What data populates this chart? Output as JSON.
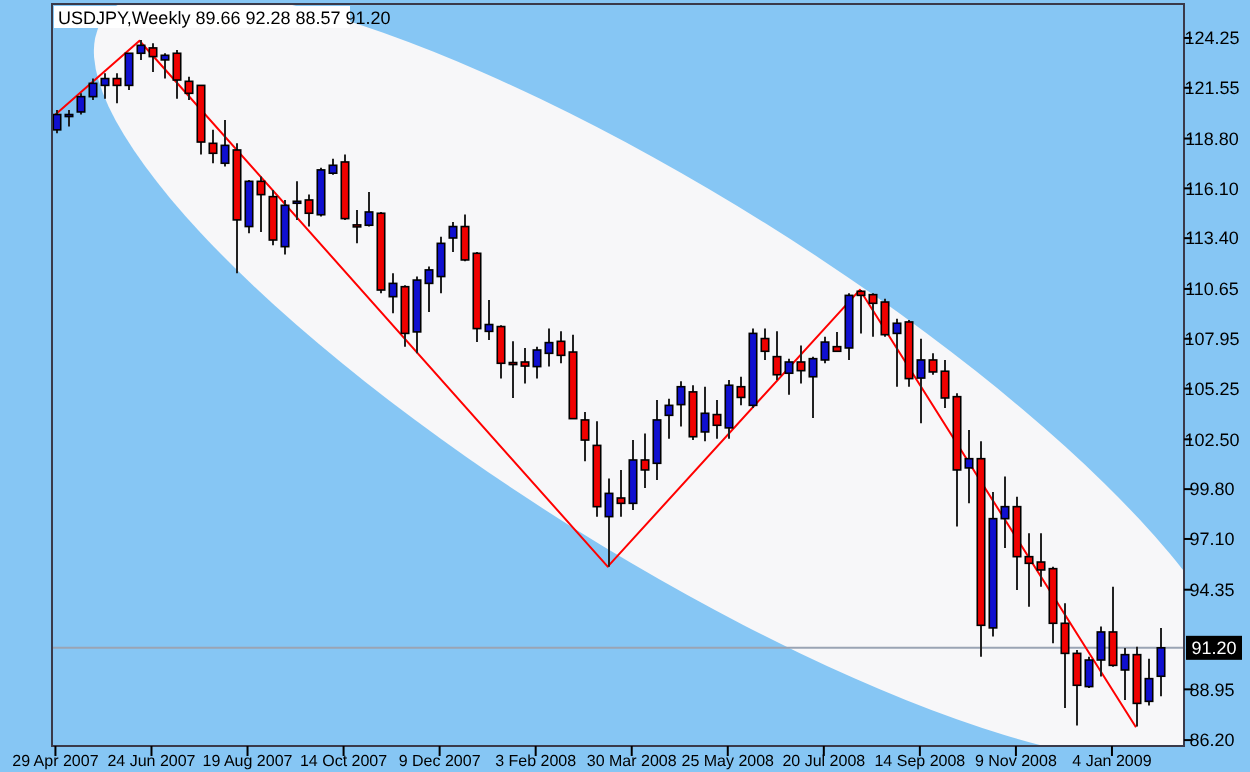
{
  "chart_data": {
    "type": "candlestick",
    "title": "USDJPY,Weekly 89.66 92.28 88.57 91.20",
    "x": [
      "2007-04-29",
      "2007-05-06",
      "2007-05-13",
      "2007-05-20",
      "2007-05-27",
      "2007-06-03",
      "2007-06-10",
      "2007-06-17",
      "2007-06-24",
      "2007-07-01",
      "2007-07-08",
      "2007-07-15",
      "2007-07-22",
      "2007-07-29",
      "2007-08-05",
      "2007-08-12",
      "2007-08-19",
      "2007-08-26",
      "2007-09-02",
      "2007-09-09",
      "2007-09-16",
      "2007-09-23",
      "2007-09-30",
      "2007-10-07",
      "2007-10-14",
      "2007-10-21",
      "2007-10-28",
      "2007-11-04",
      "2007-11-11",
      "2007-11-18",
      "2007-11-25",
      "2007-12-02",
      "2007-12-09",
      "2007-12-16",
      "2007-12-23",
      "2007-12-30",
      "2008-01-06",
      "2008-01-13",
      "2008-01-20",
      "2008-01-27",
      "2008-02-03",
      "2008-02-10",
      "2008-02-17",
      "2008-02-24",
      "2008-03-02",
      "2008-03-09",
      "2008-03-16",
      "2008-03-23",
      "2008-03-30",
      "2008-04-06",
      "2008-04-13",
      "2008-04-20",
      "2008-04-27",
      "2008-05-04",
      "2008-05-11",
      "2008-05-18",
      "2008-05-25",
      "2008-06-01",
      "2008-06-08",
      "2008-06-15",
      "2008-06-22",
      "2008-06-29",
      "2008-07-06",
      "2008-07-13",
      "2008-07-20",
      "2008-07-27",
      "2008-08-03",
      "2008-08-10",
      "2008-08-17",
      "2008-08-24",
      "2008-08-31",
      "2008-09-07",
      "2008-09-14",
      "2008-09-21",
      "2008-09-28",
      "2008-10-05",
      "2008-10-12",
      "2008-10-19",
      "2008-10-26",
      "2008-11-02",
      "2008-11-09",
      "2008-11-16",
      "2008-11-23",
      "2008-11-30",
      "2008-12-07",
      "2008-12-14",
      "2008-12-21",
      "2008-12-28",
      "2009-01-04",
      "2009-01-11",
      "2009-01-18",
      "2009-01-25",
      "2009-02-01"
    ],
    "ohlc": [
      [
        119.27,
        120.35,
        119.08,
        120.1
      ],
      [
        120.0,
        120.35,
        119.45,
        120.1
      ],
      [
        120.24,
        121.25,
        120.1,
        121.07
      ],
      [
        121.07,
        122.05,
        120.89,
        121.79
      ],
      [
        121.68,
        122.34,
        120.96,
        122.05
      ],
      [
        122.05,
        122.34,
        120.71,
        121.68
      ],
      [
        121.68,
        123.42,
        121.43,
        123.42
      ],
      [
        123.42,
        124.14,
        123.06,
        123.85
      ],
      [
        123.71,
        123.96,
        122.41,
        123.24
      ],
      [
        123.06,
        123.42,
        122.05,
        123.31
      ],
      [
        123.42,
        123.6,
        120.96,
        121.97
      ],
      [
        121.9,
        122.15,
        120.89,
        121.25
      ],
      [
        121.68,
        121.68,
        117.93,
        118.61
      ],
      [
        118.54,
        119.27,
        117.46,
        118.0
      ],
      [
        117.46,
        119.81,
        117.28,
        118.43
      ],
      [
        118.18,
        118.54,
        111.5,
        114.39
      ],
      [
        114.03,
        116.55,
        113.66,
        116.48
      ],
      [
        116.48,
        116.74,
        113.74,
        115.76
      ],
      [
        115.65,
        116.01,
        113.01,
        113.3
      ],
      [
        112.94,
        115.47,
        112.51,
        115.18
      ],
      [
        115.36,
        116.48,
        114.39,
        115.4
      ],
      [
        115.47,
        115.76,
        114.03,
        114.75
      ],
      [
        114.67,
        117.21,
        114.57,
        117.1
      ],
      [
        116.92,
        117.71,
        116.84,
        117.35
      ],
      [
        117.53,
        117.93,
        114.39,
        114.46
      ],
      [
        114.12,
        114.93,
        113.12,
        114.1
      ],
      [
        114.1,
        115.9,
        114.03,
        114.82
      ],
      [
        114.75,
        114.82,
        110.41,
        110.59
      ],
      [
        110.23,
        111.5,
        109.33,
        110.95
      ],
      [
        110.77,
        110.85,
        107.52,
        108.24
      ],
      [
        108.32,
        111.32,
        107.16,
        111.13
      ],
      [
        110.95,
        111.86,
        109.4,
        111.68
      ],
      [
        111.32,
        113.48,
        110.41,
        113.12
      ],
      [
        113.41,
        114.28,
        112.65,
        114.03
      ],
      [
        114.03,
        114.68,
        112.15,
        112.22
      ],
      [
        112.58,
        112.65,
        107.77,
        108.5
      ],
      [
        108.35,
        110.05,
        107.88,
        108.72
      ],
      [
        108.61,
        108.68,
        105.79,
        106.62
      ],
      [
        106.66,
        107.81,
        104.74,
        106.62
      ],
      [
        106.69,
        107.45,
        105.53,
        106.47
      ],
      [
        106.44,
        107.52,
        105.79,
        107.34
      ],
      [
        107.16,
        108.5,
        106.44,
        107.74
      ],
      [
        107.81,
        108.35,
        106.62,
        107.05
      ],
      [
        107.23,
        108.17,
        103.62,
        103.62
      ],
      [
        103.55,
        103.98,
        101.31,
        102.46
      ],
      [
        102.17,
        103.48,
        98.31,
        98.85
      ],
      [
        98.31,
        100.37,
        95.6,
        99.57
      ],
      [
        99.32,
        100.84,
        98.31,
        99.03
      ],
      [
        99.03,
        102.46,
        98.67,
        101.38
      ],
      [
        101.38,
        102.82,
        99.86,
        100.84
      ],
      [
        101.2,
        104.63,
        100.3,
        103.55
      ],
      [
        103.8,
        104.7,
        102.53,
        104.34
      ],
      [
        104.38,
        105.64,
        103.19,
        105.35
      ],
      [
        105.07,
        105.43,
        102.46,
        102.64
      ],
      [
        102.9,
        105.35,
        102.39,
        103.91
      ],
      [
        103.84,
        104.63,
        102.53,
        103.26
      ],
      [
        103.12,
        105.71,
        102.53,
        105.43
      ],
      [
        105.35,
        105.89,
        104.34,
        104.77
      ],
      [
        104.34,
        108.5,
        104.2,
        108.24
      ],
      [
        107.96,
        108.5,
        106.8,
        107.27
      ],
      [
        106.98,
        108.35,
        105.71,
        106.0
      ],
      [
        106.08,
        106.87,
        104.92,
        106.69
      ],
      [
        106.69,
        107.59,
        105.53,
        106.22
      ],
      [
        105.89,
        106.98,
        103.66,
        106.87
      ],
      [
        106.8,
        108.06,
        106.62,
        107.77
      ],
      [
        107.52,
        108.32,
        107.23,
        107.27
      ],
      [
        107.45,
        110.41,
        106.8,
        110.3
      ],
      [
        110.52,
        110.59,
        108.24,
        110.3
      ],
      [
        110.34,
        110.41,
        108.06,
        109.87
      ],
      [
        109.94,
        110.12,
        108.06,
        108.17
      ],
      [
        108.24,
        109.04,
        105.35,
        108.79
      ],
      [
        108.86,
        108.97,
        105.35,
        105.79
      ],
      [
        105.82,
        107.95,
        103.37,
        106.8
      ],
      [
        106.8,
        107.16,
        106.0,
        106.15
      ],
      [
        106.19,
        106.8,
        104.2,
        104.74
      ],
      [
        104.81,
        104.99,
        97.77,
        100.84
      ],
      [
        100.95,
        103.01,
        99.03,
        101.45
      ],
      [
        101.45,
        102.39,
        90.72,
        92.42
      ],
      [
        92.28,
        99.64,
        91.81,
        98.2
      ],
      [
        98.2,
        100.48,
        96.61,
        98.85
      ],
      [
        98.85,
        99.39,
        94.33,
        96.14
      ],
      [
        96.14,
        97.41,
        93.43,
        95.78
      ],
      [
        95.85,
        97.41,
        94.51,
        95.42
      ],
      [
        95.49,
        95.6,
        91.45,
        92.53
      ],
      [
        92.53,
        93.61,
        87.94,
        90.9
      ],
      [
        90.9,
        91.08,
        86.99,
        89.17
      ],
      [
        89.1,
        90.72,
        89.02,
        90.54
      ],
      [
        90.54,
        92.35,
        89.64,
        92.06
      ],
      [
        92.06,
        94.51,
        90.18,
        90.25
      ],
      [
        90.0,
        91.19,
        88.37,
        90.83
      ],
      [
        90.83,
        91.26,
        86.93,
        88.19
      ],
      [
        88.3,
        90.61,
        88.08,
        89.53
      ],
      [
        89.66,
        92.28,
        88.57,
        91.2
      ]
    ],
    "series": [
      {
        "type": "line",
        "color": "#ff0000",
        "x": [
          "2007-04-29",
          "2007-06-17",
          "2008-03-16",
          "2008-08-10",
          "2009-01-18"
        ],
        "values": [
          120.1,
          124.1,
          95.6,
          110.6,
          86.9
        ]
      }
    ],
    "xlim": [
      "2007-04-27",
      "2009-02-15"
    ],
    "xticks": [
      {
        "value": "2007-04-29",
        "label": "29 Apr 2007"
      },
      {
        "value": "2007-06-24",
        "label": "24 Jun 2007"
      },
      {
        "value": "2007-08-19",
        "label": "19 Aug 2007"
      },
      {
        "value": "2007-10-14",
        "label": "14 Oct 2007"
      },
      {
        "value": "2007-12-09",
        "label": "9 Dec 2007"
      },
      {
        "value": "2008-02-03",
        "label": "3 Feb 2008"
      },
      {
        "value": "2008-03-30",
        "label": "30 Mar 2008"
      },
      {
        "value": "2008-05-25",
        "label": "25 May 2008"
      },
      {
        "value": "2008-07-20",
        "label": "20 Jul 2008"
      },
      {
        "value": "2008-09-14",
        "label": "14 Sep 2008"
      },
      {
        "value": "2008-11-09",
        "label": "9 Nov 2008"
      },
      {
        "value": "2009-01-04",
        "label": "4 Jan 2009"
      }
    ],
    "ylim": [
      85.88,
      126.09
    ],
    "yticks": [
      124.25,
      121.55,
      {
        "value": 118.8,
        "label": "118.80"
      },
      {
        "value": 116.1,
        "label": "116.10"
      },
      {
        "value": 113.4,
        "label": "113.40"
      },
      110.65,
      107.95,
      105.25,
      {
        "value": 102.5,
        "label": "102.50"
      },
      {
        "value": 99.8,
        "label": "99.80"
      },
      {
        "value": 97.1,
        "label": "97.10"
      },
      94.35,
      88.95,
      {
        "value": 86.2,
        "label": "86.20"
      }
    ],
    "ref_lines": [
      {
        "axis": "y",
        "value": 91.2,
        "label": "91.20",
        "color": "#9aa4b4"
      }
    ]
  }
}
